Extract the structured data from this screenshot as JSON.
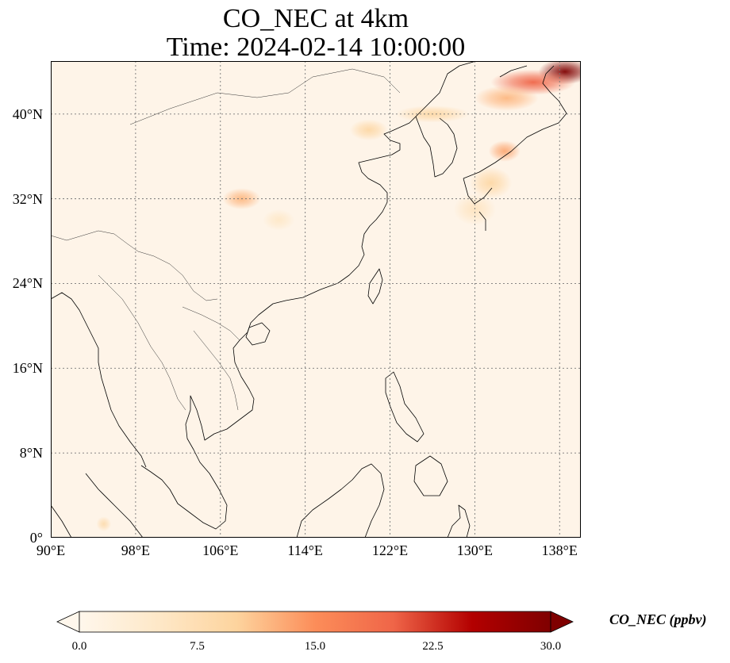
{
  "title": {
    "line1": "CO_NEC at 4km",
    "line2": "Time: 2024-02-14 10:00:00"
  },
  "map": {
    "lon_range": [
      90,
      140
    ],
    "lat_range": [
      0,
      45
    ],
    "gridlines": "dotted",
    "lat_ticks": [
      {
        "value": 0,
        "label": "0°"
      },
      {
        "value": 8,
        "label": "8°N"
      },
      {
        "value": 16,
        "label": "16°N"
      },
      {
        "value": 24,
        "label": "24°N"
      },
      {
        "value": 32,
        "label": "32°N"
      },
      {
        "value": 40,
        "label": "40°N"
      }
    ],
    "lon_ticks": [
      {
        "value": 90,
        "label": "90°E"
      },
      {
        "value": 98,
        "label": "98°E"
      },
      {
        "value": 106,
        "label": "106°E"
      },
      {
        "value": 114,
        "label": "114°E"
      },
      {
        "value": 122,
        "label": "122°E"
      },
      {
        "value": 130,
        "label": "130°E"
      },
      {
        "value": 138,
        "label": "138°E"
      }
    ],
    "colormap": "OrRd",
    "background_color": "#fef4e8",
    "coastline_color": "#000000",
    "plumes": [
      {
        "lon": 138.5,
        "lat": 44.0,
        "value": 30,
        "rx": 2.5,
        "ry": 1.2
      },
      {
        "lon": 135.5,
        "lat": 43.0,
        "value": 20,
        "rx": 4.0,
        "ry": 1.2
      },
      {
        "lon": 133.0,
        "lat": 41.5,
        "value": 12,
        "rx": 3.0,
        "ry": 1.2
      },
      {
        "lon": 132.8,
        "lat": 36.5,
        "value": 13,
        "rx": 1.5,
        "ry": 1.0
      },
      {
        "lon": 131.5,
        "lat": 33.5,
        "value": 9,
        "rx": 2.0,
        "ry": 1.5
      },
      {
        "lon": 130.0,
        "lat": 31.0,
        "value": 6,
        "rx": 2.0,
        "ry": 1.5
      },
      {
        "lon": 126.0,
        "lat": 40.0,
        "value": 9,
        "rx": 3.5,
        "ry": 0.8
      },
      {
        "lon": 120.0,
        "lat": 38.5,
        "value": 9,
        "rx": 1.8,
        "ry": 1.0
      },
      {
        "lon": 108.0,
        "lat": 32.0,
        "value": 12,
        "rx": 1.8,
        "ry": 1.0
      },
      {
        "lon": 111.5,
        "lat": 30.0,
        "value": 5,
        "rx": 1.5,
        "ry": 1.0
      },
      {
        "lon": 95.0,
        "lat": 1.3,
        "value": 8,
        "rx": 0.7,
        "ry": 0.7
      }
    ]
  },
  "colorbar": {
    "label": "CO_NEC (ppbv)",
    "min": 0,
    "max": 30,
    "extend": "both",
    "ticks": [
      {
        "value": 0,
        "label": "0.0"
      },
      {
        "value": 7.5,
        "label": "7.5"
      },
      {
        "value": 15,
        "label": "15.0"
      },
      {
        "value": 22.5,
        "label": "22.5"
      },
      {
        "value": 30,
        "label": "30.0"
      }
    ],
    "stops": [
      {
        "value": 0,
        "color": "#fff7ec"
      },
      {
        "value": 5,
        "color": "#fee8c8"
      },
      {
        "value": 10,
        "color": "#fdd49e"
      },
      {
        "value": 15,
        "color": "#fc8d59"
      },
      {
        "value": 20,
        "color": "#ef6548"
      },
      {
        "value": 25,
        "color": "#b30000"
      },
      {
        "value": 30,
        "color": "#7f0000"
      }
    ]
  }
}
